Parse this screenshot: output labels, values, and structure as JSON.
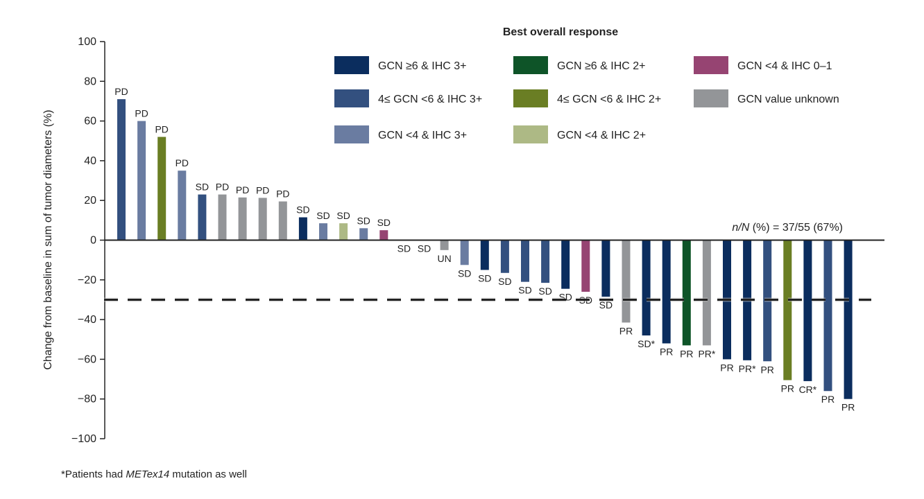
{
  "chart_data": {
    "type": "bar",
    "title": "",
    "ylabel": "Change from baseline in sum of tumor diameters (%)",
    "xlabel": "",
    "ylim": [
      -100,
      100
    ],
    "yticks": [
      100,
      80,
      60,
      40,
      20,
      0,
      -20,
      -40,
      -60,
      -80,
      -100
    ],
    "ytick_labels": [
      "100",
      "80",
      "60",
      "40",
      "20",
      "0",
      "−20",
      "−40",
      "−60",
      "−80",
      "−100"
    ],
    "grid": false,
    "reference_line": -30,
    "annotation": {
      "italic_part": "n/N",
      "text": " (%) = 37/55 (67%)"
    },
    "legend": {
      "title": "Best overall response",
      "placement": "top",
      "entries": [
        {
          "key": "N",
          "name": "GCN ≥6 & IHC 3+",
          "color": "#0b2d5e"
        },
        {
          "key": "M",
          "name": "4≤ GCN <6 & IHC 3+",
          "color": "#33507f"
        },
        {
          "key": "L",
          "name": "GCN <4 & IHC 3+",
          "color": "#6a7ca1"
        },
        {
          "key": "G",
          "name": "GCN ≥6 & IHC 2+",
          "color": "#0e5428"
        },
        {
          "key": "O",
          "name": "4≤ GCN <6 & IHC 2+",
          "color": "#6a7e24"
        },
        {
          "key": "LO",
          "name": "GCN <4 & IHC 2+",
          "color": "#adb985"
        },
        {
          "key": "MG",
          "name": "GCN <4 & IHC 0–1",
          "color": "#964472"
        },
        {
          "key": "GR",
          "name": "GCN value unknown",
          "color": "#939598"
        }
      ]
    },
    "bars": [
      {
        "value": 71,
        "label": "PD",
        "group": "M"
      },
      {
        "value": 60,
        "label": "PD",
        "group": "L"
      },
      {
        "value": 52,
        "label": "PD",
        "group": "O"
      },
      {
        "value": 35,
        "label": "PD",
        "group": "L"
      },
      {
        "value": 23,
        "label": "SD",
        "group": "M"
      },
      {
        "value": 23,
        "label": "PD",
        "group": "GR"
      },
      {
        "value": 21.5,
        "label": "PD",
        "group": "GR"
      },
      {
        "value": 21.3,
        "label": "PD",
        "group": "GR"
      },
      {
        "value": 19.5,
        "label": "PD",
        "group": "GR"
      },
      {
        "value": 11.5,
        "label": "SD",
        "group": "N"
      },
      {
        "value": 8.5,
        "label": "SD",
        "group": "L"
      },
      {
        "value": 8.5,
        "label": "SD",
        "group": "LO"
      },
      {
        "value": 6,
        "label": "SD",
        "group": "L"
      },
      {
        "value": 5,
        "label": "SD",
        "group": "MG"
      },
      {
        "value": 0,
        "label": "SD",
        "group": null
      },
      {
        "value": 0,
        "label": "SD",
        "group": null
      },
      {
        "value": -5,
        "label": "UN",
        "group": "GR"
      },
      {
        "value": -12.5,
        "label": "SD",
        "group": "L"
      },
      {
        "value": -15,
        "label": "SD",
        "group": "N"
      },
      {
        "value": -16.5,
        "label": "SD",
        "group": "M"
      },
      {
        "value": -21,
        "label": "SD",
        "group": "M"
      },
      {
        "value": -21.5,
        "label": "SD",
        "group": "M"
      },
      {
        "value": -24.5,
        "label": "SD",
        "group": "N"
      },
      {
        "value": -26,
        "label": "SD",
        "group": "MG"
      },
      {
        "value": -28.5,
        "label": "SD",
        "group": "N"
      },
      {
        "value": -41.5,
        "label": "PR",
        "group": "GR"
      },
      {
        "value": -48,
        "label": "SD*",
        "group": "N"
      },
      {
        "value": -52,
        "label": "PR",
        "group": "N"
      },
      {
        "value": -53,
        "label": "PR",
        "group": "G"
      },
      {
        "value": -53,
        "label": "PR*",
        "group": "GR"
      },
      {
        "value": -60,
        "label": "PR",
        "group": "N"
      },
      {
        "value": -60.5,
        "label": "PR*",
        "group": "N"
      },
      {
        "value": -61,
        "label": "PR",
        "group": "M"
      },
      {
        "value": -70.5,
        "label": "PR",
        "group": "O"
      },
      {
        "value": -71,
        "label": "CR*",
        "group": "N"
      },
      {
        "value": -76,
        "label": "PR",
        "group": "M"
      },
      {
        "value": -80,
        "label": "PR",
        "group": "N"
      }
    ]
  },
  "footnote": {
    "prefix": "*Patients had ",
    "italic": "METex14",
    "suffix": " mutation as well"
  }
}
